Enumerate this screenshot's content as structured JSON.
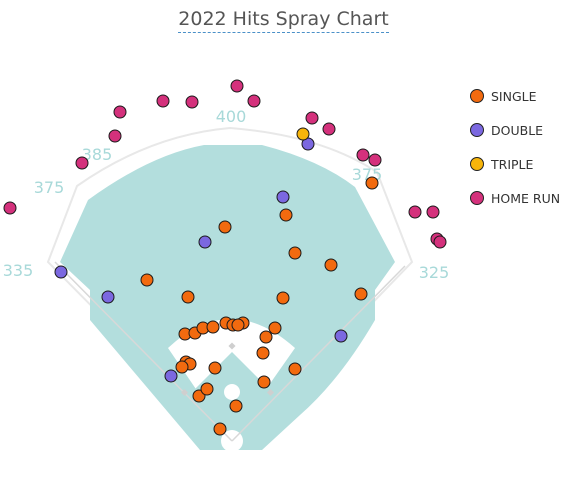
{
  "chart_data": {
    "type": "scatter",
    "title": "2022 Hits Spray Chart",
    "xlabel": "",
    "ylabel": "",
    "distance_labels": [
      "335",
      "375",
      "385",
      "400",
      "375",
      "325"
    ],
    "legend": [
      "SINGLE",
      "DOUBLE",
      "TRIPLE",
      "HOME RUN"
    ],
    "legend_position": "right",
    "grid": false,
    "colors": {
      "SINGLE": "#f26a0f",
      "DOUBLE": "#7b68e0",
      "TRIPLE": "#f7b50a",
      "HOME RUN": "#d4317c",
      "field": "#b3dedd",
      "infield_dirt": "#ffffff",
      "wall": "#e8e8e8"
    },
    "series": [
      {
        "name": "SINGLE",
        "points": [
          [
            147,
            280
          ],
          [
            188,
            297
          ],
          [
            225,
            227
          ],
          [
            286,
            215
          ],
          [
            295,
            253
          ],
          [
            331,
            265
          ],
          [
            361,
            294
          ],
          [
            283,
            298
          ],
          [
            372,
            183
          ],
          [
            185,
            334
          ],
          [
            195,
            333
          ],
          [
            203,
            328
          ],
          [
            213,
            327
          ],
          [
            226,
            323
          ],
          [
            233,
            325
          ],
          [
            243,
            323
          ],
          [
            238,
            325
          ],
          [
            266,
            337
          ],
          [
            275,
            328
          ],
          [
            263,
            353
          ],
          [
            186,
            362
          ],
          [
            190,
            364
          ],
          [
            182,
            367
          ],
          [
            215,
            368
          ],
          [
            264,
            382
          ],
          [
            295,
            369
          ],
          [
            199,
            396
          ],
          [
            207,
            389
          ],
          [
            236,
            406
          ],
          [
            220,
            429
          ]
        ]
      },
      {
        "name": "DOUBLE",
        "points": [
          [
            61,
            272
          ],
          [
            108,
            297
          ],
          [
            205,
            242
          ],
          [
            283,
            197
          ],
          [
            308,
            144
          ],
          [
            341,
            336
          ],
          [
            171,
            376
          ]
        ]
      },
      {
        "name": "TRIPLE",
        "points": [
          [
            303,
            134
          ]
        ]
      },
      {
        "name": "HOME RUN",
        "points": [
          [
            10,
            208
          ],
          [
            82,
            163
          ],
          [
            115,
            136
          ],
          [
            120,
            112
          ],
          [
            163,
            101
          ],
          [
            192,
            102
          ],
          [
            237,
            86
          ],
          [
            254,
            101
          ],
          [
            312,
            118
          ],
          [
            329,
            129
          ],
          [
            363,
            155
          ],
          [
            375,
            160
          ],
          [
            415,
            212
          ],
          [
            433,
            212
          ],
          [
            437,
            239
          ],
          [
            440,
            242
          ]
        ]
      }
    ]
  }
}
